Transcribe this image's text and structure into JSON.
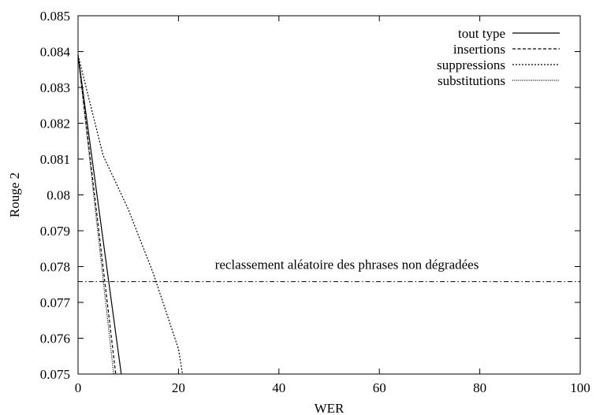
{
  "chart_data": {
    "type": "line",
    "xlabel": "WER",
    "ylabel": "Rouge 2",
    "xlim": [
      0,
      100
    ],
    "ylim": [
      0.075,
      0.085
    ],
    "xticks": [
      0,
      20,
      40,
      60,
      80,
      100
    ],
    "xtick_labels": [
      "0",
      "20",
      "40",
      "60",
      "80",
      "100"
    ],
    "yticks": [
      0.075,
      0.076,
      0.077,
      0.078,
      0.079,
      0.08,
      0.081,
      0.082,
      0.083,
      0.084,
      0.085
    ],
    "ytick_labels": [
      "0.075",
      "0.076",
      "0.077",
      "0.078",
      "0.079",
      "0.08",
      "0.081",
      "0.082",
      "0.083",
      "0.084",
      "0.085"
    ],
    "grid": false,
    "legend_position": "top-right",
    "series": [
      {
        "name": "tout type",
        "style": "solid",
        "x": [
          0,
          8.6
        ],
        "y": [
          0.0839,
          0.075
        ]
      },
      {
        "name": "insertions",
        "style": "dashed",
        "x": [
          0,
          7.5
        ],
        "y": [
          0.0839,
          0.075
        ]
      },
      {
        "name": "suppressions",
        "style": "dotted",
        "x": [
          0,
          5,
          10,
          15,
          20,
          20.8
        ],
        "y": [
          0.0839,
          0.0811,
          0.0796,
          0.0778,
          0.0757,
          0.075
        ]
      },
      {
        "name": "substitutions",
        "style": "fine-dotted",
        "x": [
          0,
          7.1
        ],
        "y": [
          0.0839,
          0.075
        ]
      }
    ],
    "reference_line": {
      "y": 0.07758,
      "style": "dash-dot",
      "label": "reclassement aléatoire des phrases non dégradées"
    }
  }
}
